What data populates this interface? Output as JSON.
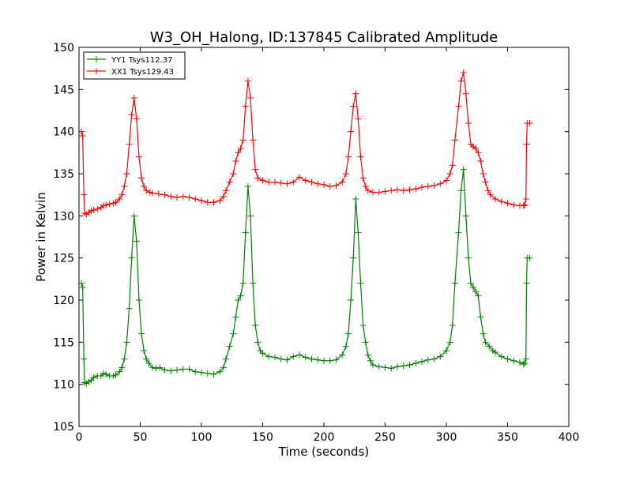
{
  "chart_data": {
    "type": "line",
    "title": "W3_OH_Halong, ID:137845 Calibrated Amplitude",
    "xlabel": "Time (seconds)",
    "ylabel": "Power in Kelvin",
    "xlim": [
      0,
      400
    ],
    "ylim": [
      105,
      150
    ],
    "xticks": [
      0,
      50,
      100,
      150,
      200,
      250,
      300,
      350,
      400
    ],
    "yticks": [
      105,
      110,
      115,
      120,
      125,
      130,
      135,
      140,
      145,
      150
    ],
    "grid": false,
    "legend_position": "top-left",
    "marker": "+",
    "series": [
      {
        "name": "YY1 Tsys112.37",
        "color": "#008000",
        "points": [
          [
            2,
            122
          ],
          [
            3,
            121.5
          ],
          [
            4,
            113
          ],
          [
            4.5,
            110.2
          ],
          [
            6,
            110.1
          ],
          [
            8,
            110.3
          ],
          [
            10,
            110.5
          ],
          [
            12,
            110.8
          ],
          [
            15,
            111
          ],
          [
            18,
            111
          ],
          [
            20,
            111.3
          ],
          [
            22,
            111.2
          ],
          [
            25,
            111
          ],
          [
            28,
            111
          ],
          [
            30,
            111.1
          ],
          [
            33,
            111.5
          ],
          [
            35,
            112
          ],
          [
            37,
            113
          ],
          [
            39,
            115
          ],
          [
            41,
            119
          ],
          [
            43,
            125
          ],
          [
            45,
            130
          ],
          [
            47,
            127
          ],
          [
            49,
            120
          ],
          [
            51,
            116
          ],
          [
            53,
            114
          ],
          [
            55,
            113
          ],
          [
            57,
            112.5
          ],
          [
            60,
            112
          ],
          [
            63,
            111.9
          ],
          [
            66,
            112
          ],
          [
            70,
            111.7
          ],
          [
            75,
            111.6
          ],
          [
            80,
            111.7
          ],
          [
            85,
            111.8
          ],
          [
            90,
            111.8
          ],
          [
            95,
            111.5
          ],
          [
            100,
            111.4
          ],
          [
            105,
            111.3
          ],
          [
            110,
            111.2
          ],
          [
            115,
            111.5
          ],
          [
            118,
            112
          ],
          [
            120,
            113
          ],
          [
            123,
            114.5
          ],
          [
            126,
            116
          ],
          [
            128,
            118
          ],
          [
            130,
            120
          ],
          [
            132,
            120.5
          ],
          [
            134,
            122
          ],
          [
            136,
            128
          ],
          [
            138,
            133.5
          ],
          [
            140,
            130
          ],
          [
            142,
            122
          ],
          [
            144,
            117
          ],
          [
            146,
            115
          ],
          [
            148,
            114
          ],
          [
            150,
            113.7
          ],
          [
            155,
            113.3
          ],
          [
            160,
            113.2
          ],
          [
            165,
            113
          ],
          [
            170,
            112.9
          ],
          [
            175,
            113.3
          ],
          [
            180,
            113.5
          ],
          [
            185,
            113.2
          ],
          [
            190,
            113
          ],
          [
            195,
            112.9
          ],
          [
            200,
            112.8
          ],
          [
            205,
            112.8
          ],
          [
            210,
            112.9
          ],
          [
            215,
            113.5
          ],
          [
            218,
            114.5
          ],
          [
            220,
            116
          ],
          [
            222,
            120
          ],
          [
            224,
            125
          ],
          [
            226,
            132
          ],
          [
            228,
            128
          ],
          [
            230,
            122
          ],
          [
            232,
            117
          ],
          [
            234,
            115
          ],
          [
            236,
            113.5
          ],
          [
            238,
            112.8
          ],
          [
            240,
            112.3
          ],
          [
            245,
            112.1
          ],
          [
            250,
            112
          ],
          [
            255,
            111.9
          ],
          [
            260,
            112.1
          ],
          [
            265,
            112.2
          ],
          [
            270,
            112.3
          ],
          [
            275,
            112.5
          ],
          [
            280,
            112.7
          ],
          [
            285,
            112.9
          ],
          [
            290,
            113
          ],
          [
            295,
            113.3
          ],
          [
            300,
            114
          ],
          [
            303,
            115
          ],
          [
            305,
            117
          ],
          [
            307,
            122
          ],
          [
            310,
            128
          ],
          [
            312,
            133
          ],
          [
            314,
            135.5
          ],
          [
            316,
            130
          ],
          [
            318,
            125
          ],
          [
            320,
            122
          ],
          [
            322,
            121.5
          ],
          [
            324,
            121
          ],
          [
            326,
            120.5
          ],
          [
            328,
            118
          ],
          [
            330,
            116
          ],
          [
            332,
            115
          ],
          [
            335,
            114.5
          ],
          [
            338,
            114
          ],
          [
            340,
            113.8
          ],
          [
            345,
            113.3
          ],
          [
            350,
            113
          ],
          [
            355,
            112.8
          ],
          [
            360,
            112.6
          ],
          [
            363,
            112.4
          ],
          [
            364,
            112.5
          ],
          [
            365,
            113
          ],
          [
            365.5,
            122
          ],
          [
            366,
            125
          ],
          [
            368,
            125
          ]
        ]
      },
      {
        "name": "XX1 Tsys129.43",
        "color": "#ff0000",
        "points": [
          [
            2,
            140
          ],
          [
            3,
            139.5
          ],
          [
            4,
            132.5
          ],
          [
            4.5,
            130.3
          ],
          [
            6,
            130.2
          ],
          [
            8,
            130.4
          ],
          [
            10,
            130.6
          ],
          [
            12,
            130.7
          ],
          [
            15,
            130.8
          ],
          [
            18,
            131
          ],
          [
            20,
            131.2
          ],
          [
            22,
            131.3
          ],
          [
            25,
            131.4
          ],
          [
            28,
            131.5
          ],
          [
            30,
            131.6
          ],
          [
            33,
            132
          ],
          [
            35,
            132.5
          ],
          [
            37,
            133.5
          ],
          [
            39,
            135
          ],
          [
            41,
            138.5
          ],
          [
            43,
            142
          ],
          [
            45,
            144
          ],
          [
            47,
            141.5
          ],
          [
            49,
            137
          ],
          [
            51,
            134.5
          ],
          [
            53,
            133.5
          ],
          [
            55,
            133
          ],
          [
            58,
            132.8
          ],
          [
            60,
            132.7
          ],
          [
            65,
            132.6
          ],
          [
            70,
            132.5
          ],
          [
            75,
            132.3
          ],
          [
            80,
            132.2
          ],
          [
            85,
            132.3
          ],
          [
            90,
            132.2
          ],
          [
            95,
            132
          ],
          [
            100,
            131.8
          ],
          [
            105,
            131.6
          ],
          [
            110,
            131.6
          ],
          [
            115,
            131.8
          ],
          [
            118,
            132.3
          ],
          [
            120,
            133
          ],
          [
            123,
            134
          ],
          [
            126,
            135
          ],
          [
            128,
            136.5
          ],
          [
            130,
            137.5
          ],
          [
            132,
            138
          ],
          [
            134,
            139
          ],
          [
            136,
            143
          ],
          [
            138,
            146
          ],
          [
            140,
            144
          ],
          [
            142,
            139
          ],
          [
            144,
            135.5
          ],
          [
            146,
            134.5
          ],
          [
            150,
            134.2
          ],
          [
            155,
            134
          ],
          [
            160,
            134
          ],
          [
            165,
            133.9
          ],
          [
            170,
            133.8
          ],
          [
            175,
            134
          ],
          [
            180,
            134.6
          ],
          [
            185,
            134.2
          ],
          [
            190,
            134
          ],
          [
            195,
            133.8
          ],
          [
            200,
            133.7
          ],
          [
            205,
            133.5
          ],
          [
            210,
            133.6
          ],
          [
            215,
            134
          ],
          [
            218,
            135
          ],
          [
            220,
            137
          ],
          [
            222,
            140
          ],
          [
            224,
            143
          ],
          [
            226,
            144.5
          ],
          [
            228,
            141.5
          ],
          [
            230,
            137
          ],
          [
            232,
            134.5
          ],
          [
            234,
            133.5
          ],
          [
            236,
            133
          ],
          [
            240,
            132.8
          ],
          [
            245,
            132.8
          ],
          [
            250,
            132.9
          ],
          [
            255,
            133
          ],
          [
            260,
            133.1
          ],
          [
            265,
            133
          ],
          [
            270,
            133.1
          ],
          [
            275,
            133.2
          ],
          [
            280,
            133.4
          ],
          [
            285,
            133.5
          ],
          [
            290,
            133.6
          ],
          [
            295,
            133.8
          ],
          [
            300,
            134.2
          ],
          [
            303,
            135
          ],
          [
            305,
            136
          ],
          [
            307,
            139
          ],
          [
            310,
            143
          ],
          [
            312,
            146
          ],
          [
            314,
            147
          ],
          [
            316,
            144.5
          ],
          [
            318,
            141
          ],
          [
            320,
            138.5
          ],
          [
            322,
            138.2
          ],
          [
            324,
            138
          ],
          [
            326,
            137.5
          ],
          [
            328,
            136.5
          ],
          [
            330,
            135
          ],
          [
            332,
            134
          ],
          [
            334,
            133
          ],
          [
            336,
            132.5
          ],
          [
            340,
            132
          ],
          [
            345,
            131.7
          ],
          [
            350,
            131.5
          ],
          [
            355,
            131.3
          ],
          [
            360,
            131.2
          ],
          [
            363,
            131.2
          ],
          [
            364,
            131.3
          ],
          [
            365,
            132
          ],
          [
            365.5,
            138.5
          ],
          [
            366,
            141
          ],
          [
            368,
            141
          ]
        ]
      }
    ]
  }
}
